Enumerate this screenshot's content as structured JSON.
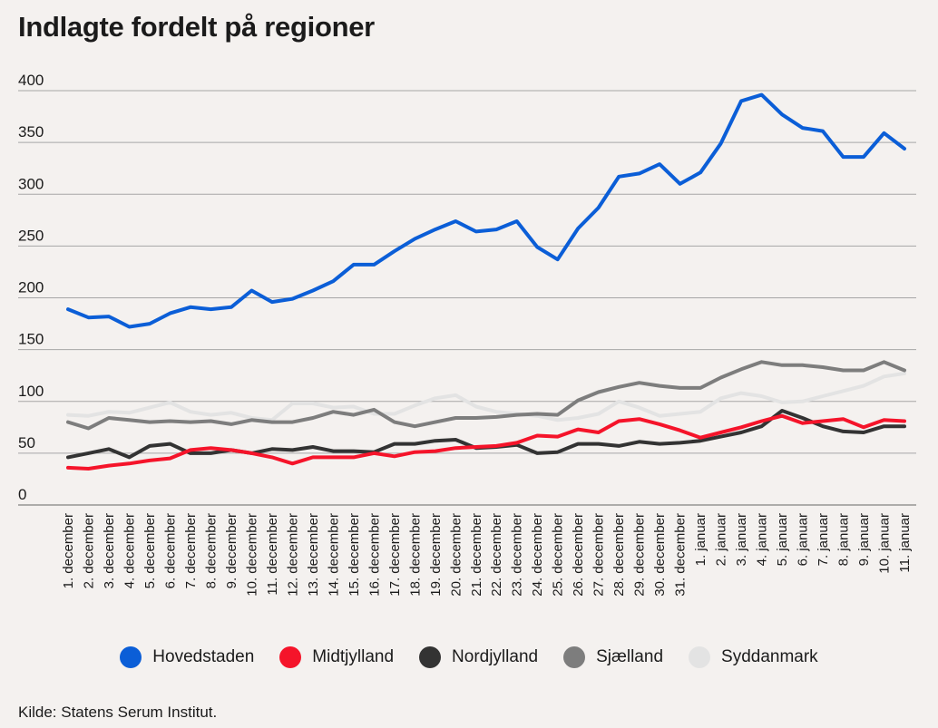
{
  "title": "Indlagte fordelt på regioner",
  "source": "Kilde: Statens Serum Institut.",
  "chart_data": {
    "type": "line",
    "title": "Indlagte fordelt på regioner",
    "xlabel": "",
    "ylabel": "",
    "ylim": [
      0,
      400
    ],
    "yticks": [
      0,
      50,
      100,
      150,
      200,
      250,
      300,
      350,
      400
    ],
    "grid": true,
    "legend": "bottom",
    "categories": [
      "1. december",
      "2. december",
      "3. december",
      "4. december",
      "5. december",
      "6. december",
      "7. december",
      "8. december",
      "9. december",
      "10. december",
      "11. december",
      "12. december",
      "13. december",
      "14. december",
      "15. december",
      "16. december",
      "17. december",
      "18. december",
      "19. december",
      "20. december",
      "21. december",
      "22. december",
      "23. december",
      "24. december",
      "25. december",
      "26. december",
      "27. december",
      "28. december",
      "29. december",
      "30. december",
      "31. december",
      "1. januar",
      "2. januar",
      "3. januar",
      "4. januar",
      "5. januar",
      "6. januar",
      "7. januar",
      "8. januar",
      "9. januar",
      "10. januar",
      "11. januar"
    ],
    "series": [
      {
        "name": "Hovedstaden",
        "color": "#0b5ed7",
        "values": [
          189,
          181,
          182,
          172,
          175,
          185,
          191,
          189,
          191,
          207,
          196,
          199,
          207,
          216,
          232,
          232,
          245,
          257,
          266,
          274,
          264,
          266,
          274,
          249,
          237,
          267,
          287,
          317,
          320,
          329,
          310,
          321,
          349,
          390,
          396,
          377,
          364,
          361,
          336,
          336,
          359,
          344
        ]
      },
      {
        "name": "Midtjylland",
        "color": "#f5142a",
        "values": [
          36,
          35,
          38,
          40,
          43,
          45,
          53,
          55,
          53,
          50,
          46,
          40,
          46,
          46,
          46,
          50,
          47,
          51,
          52,
          55,
          56,
          57,
          60,
          67,
          66,
          73,
          70,
          81,
          83,
          78,
          72,
          65,
          70,
          75,
          81,
          86,
          79,
          81,
          83,
          75,
          82,
          81
        ]
      },
      {
        "name": "Nordjylland",
        "color": "#333333",
        "values": [
          46,
          50,
          54,
          46,
          57,
          59,
          50,
          50,
          53,
          50,
          54,
          53,
          56,
          52,
          52,
          51,
          59,
          59,
          62,
          63,
          55,
          56,
          58,
          50,
          51,
          59,
          59,
          57,
          61,
          59,
          60,
          62,
          66,
          70,
          76,
          91,
          84,
          76,
          71,
          70,
          76,
          76
        ]
      },
      {
        "name": "Sjælland",
        "color": "#7d7d7d",
        "values": [
          80,
          74,
          84,
          82,
          80,
          81,
          80,
          81,
          78,
          82,
          80,
          80,
          84,
          90,
          87,
          92,
          80,
          76,
          80,
          84,
          84,
          85,
          87,
          88,
          87,
          101,
          109,
          114,
          118,
          115,
          113,
          113,
          123,
          131,
          138,
          135,
          135,
          133,
          130,
          130,
          138,
          130
        ]
      },
      {
        "name": "Syddanmark",
        "color": "#e3e3e3",
        "values": [
          87,
          86,
          90,
          89,
          94,
          99,
          90,
          87,
          89,
          84,
          82,
          98,
          98,
          94,
          95,
          88,
          88,
          96,
          103,
          106,
          95,
          90,
          88,
          86,
          82,
          84,
          88,
          100,
          94,
          86,
          88,
          90,
          103,
          108,
          105,
          99,
          100,
          105,
          110,
          115,
          124,
          127
        ]
      }
    ]
  }
}
